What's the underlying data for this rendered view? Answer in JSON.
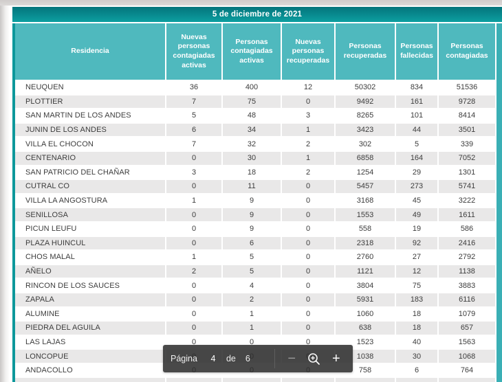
{
  "viewer": {
    "toolbar": {
      "page_label": "Página",
      "current_page": "4",
      "of_label": "de",
      "total_pages": "6",
      "zoom_out_glyph": "−",
      "zoom_in_glyph": "+",
      "zoom_icon_name": "magnifier-plus-icon"
    }
  },
  "report": {
    "title": "5 de diciembre de 2021",
    "table": {
      "columns": [
        {
          "label": "Residencia"
        },
        {
          "label": "Nuevas personas contagiadas activas"
        },
        {
          "label": "Personas contagiadas activas"
        },
        {
          "label": "Nuevas personas recuperadas"
        },
        {
          "label": "Personas recuperadas"
        },
        {
          "label": "Personas fallecidas"
        },
        {
          "label": "Personas contagiadas"
        }
      ],
      "rows": [
        {
          "residencia": "NEUQUEN",
          "values": [
            36,
            400,
            12,
            50302,
            834,
            51536
          ]
        },
        {
          "residencia": "PLOTTIER",
          "values": [
            7,
            75,
            0,
            9492,
            161,
            9728
          ]
        },
        {
          "residencia": "SAN MARTIN DE LOS ANDES",
          "values": [
            5,
            48,
            3,
            8265,
            101,
            8414
          ]
        },
        {
          "residencia": "JUNIN DE LOS ANDES",
          "values": [
            6,
            34,
            1,
            3423,
            44,
            3501
          ]
        },
        {
          "residencia": "VILLA EL CHOCON",
          "values": [
            7,
            32,
            2,
            302,
            5,
            339
          ]
        },
        {
          "residencia": "CENTENARIO",
          "values": [
            0,
            30,
            1,
            6858,
            164,
            7052
          ]
        },
        {
          "residencia": "SAN PATRICIO DEL CHAÑAR",
          "values": [
            3,
            18,
            2,
            1254,
            29,
            1301
          ]
        },
        {
          "residencia": "CUTRAL CO",
          "values": [
            0,
            11,
            0,
            5457,
            273,
            5741
          ]
        },
        {
          "residencia": "VILLA LA ANGOSTURA",
          "values": [
            1,
            9,
            0,
            3168,
            45,
            3222
          ]
        },
        {
          "residencia": "SENILLOSA",
          "values": [
            0,
            9,
            0,
            1553,
            49,
            1611
          ]
        },
        {
          "residencia": "PICUN LEUFU",
          "values": [
            0,
            9,
            0,
            558,
            19,
            586
          ]
        },
        {
          "residencia": "PLAZA HUINCUL",
          "values": [
            0,
            6,
            0,
            2318,
            92,
            2416
          ]
        },
        {
          "residencia": "CHOS MALAL",
          "values": [
            1,
            5,
            0,
            2760,
            27,
            2792
          ]
        },
        {
          "residencia": "AÑELO",
          "values": [
            2,
            5,
            0,
            1121,
            12,
            1138
          ]
        },
        {
          "residencia": "RINCON DE LOS SAUCES",
          "values": [
            0,
            4,
            0,
            3804,
            75,
            3883
          ]
        },
        {
          "residencia": "ZAPALA",
          "values": [
            0,
            2,
            0,
            5931,
            183,
            6116
          ]
        },
        {
          "residencia": "ALUMINE",
          "values": [
            0,
            1,
            0,
            1060,
            18,
            1079
          ]
        },
        {
          "residencia": "PIEDRA DEL AGUILA",
          "values": [
            0,
            1,
            0,
            638,
            18,
            657
          ]
        },
        {
          "residencia": "LAS LAJAS",
          "values": [
            0,
            0,
            0,
            1523,
            40,
            1563
          ]
        },
        {
          "residencia": "LONCOPUE",
          "values": [
            0,
            0,
            0,
            1038,
            30,
            1068
          ]
        },
        {
          "residencia": "ANDACOLLO",
          "values": [
            0,
            0,
            0,
            758,
            6,
            764
          ]
        }
      ]
    }
  },
  "colors": {
    "title_gradient_top": "#03747c",
    "title_gradient_bottom": "#0d9fa0",
    "header_teal": "#4fb9be",
    "left_border_teal": "#0d989b",
    "right_border_teal": "#3aafb5",
    "row_alt_gray": "#e9e8e8",
    "row_text": "#3c3c3c",
    "toolbar_bg": "rgba(46,46,46,0.87)"
  }
}
